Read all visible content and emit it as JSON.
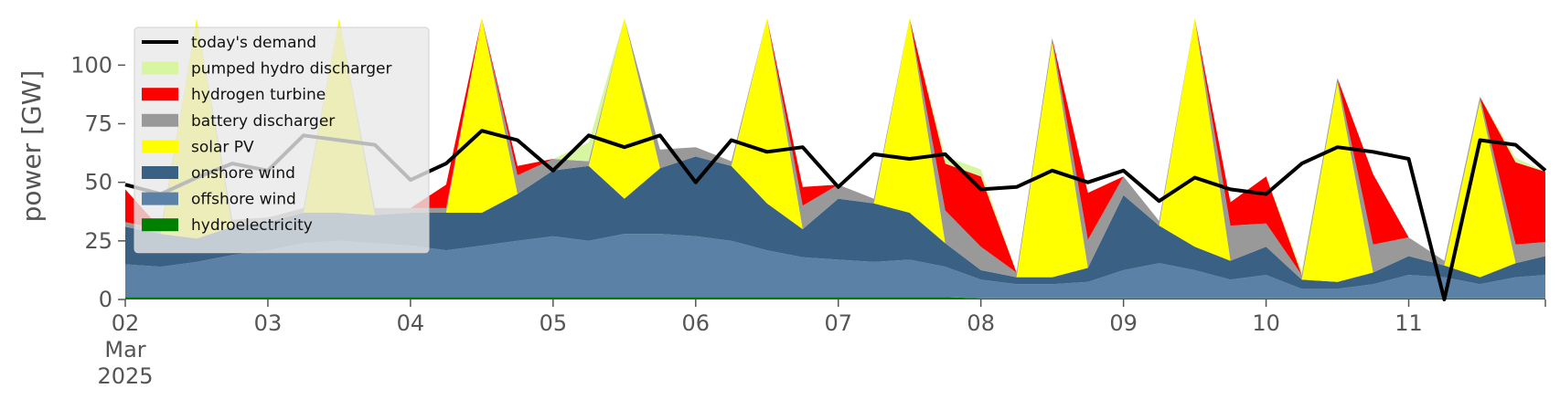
{
  "chart_data": {
    "type": "area",
    "ylabel": "power [GW]",
    "xlabel": "",
    "ylim": [
      0,
      120
    ],
    "xlim": [
      "2025-03-02 00:00",
      "2025-03-11 23:00"
    ],
    "grid": false,
    "legend_position": "top-left",
    "y_ticks": [
      "0",
      "25",
      "50",
      "75",
      "100"
    ],
    "x_ticks": [
      {
        "date": "2025-03-02",
        "label": "02",
        "sublabel": "Mar",
        "sublabel2": "2025"
      },
      {
        "date": "2025-03-03",
        "label": "03"
      },
      {
        "date": "2025-03-04",
        "label": "04"
      },
      {
        "date": "2025-03-05",
        "label": "05"
      },
      {
        "date": "2025-03-06",
        "label": "06"
      },
      {
        "date": "2025-03-07",
        "label": "07"
      },
      {
        "date": "2025-03-08",
        "label": "08"
      },
      {
        "date": "2025-03-09",
        "label": "09"
      },
      {
        "date": "2025-03-10",
        "label": "10"
      },
      {
        "date": "2025-03-11",
        "label": "11"
      }
    ],
    "x": [
      "2025-03-02 00:00",
      "2025-03-02 06:00",
      "2025-03-02 12:00",
      "2025-03-02 18:00",
      "2025-03-03 00:00",
      "2025-03-03 06:00",
      "2025-03-03 12:00",
      "2025-03-03 18:00",
      "2025-03-04 00:00",
      "2025-03-04 06:00",
      "2025-03-04 12:00",
      "2025-03-04 18:00",
      "2025-03-05 00:00",
      "2025-03-05 06:00",
      "2025-03-05 12:00",
      "2025-03-05 18:00",
      "2025-03-06 00:00",
      "2025-03-06 06:00",
      "2025-03-06 12:00",
      "2025-03-06 18:00",
      "2025-03-07 00:00",
      "2025-03-07 06:00",
      "2025-03-07 12:00",
      "2025-03-07 18:00",
      "2025-03-08 00:00",
      "2025-03-08 06:00",
      "2025-03-08 12:00",
      "2025-03-08 18:00",
      "2025-03-09 00:00",
      "2025-03-09 06:00",
      "2025-03-09 12:00",
      "2025-03-09 18:00",
      "2025-03-10 00:00",
      "2025-03-10 06:00",
      "2025-03-10 12:00",
      "2025-03-10 18:00",
      "2025-03-11 00:00",
      "2025-03-11 06:00",
      "2025-03-11 12:00",
      "2025-03-11 18:00",
      "2025-03-11 23:00"
    ],
    "series": [
      {
        "name": "hydroelectricity",
        "color": "#008000",
        "kind": "area",
        "values": [
          1,
          1,
          1,
          1,
          1,
          1,
          1,
          1,
          1,
          1,
          1,
          1,
          1,
          1,
          1,
          1,
          1,
          1,
          1,
          1,
          1,
          1,
          1,
          1,
          0.5,
          0.5,
          0.5,
          0.5,
          0.5,
          0.5,
          0.5,
          0.5,
          0.5,
          0.5,
          0.5,
          0.5,
          0.5,
          0.5,
          0.5,
          0.5,
          0.5
        ]
      },
      {
        "name": "offshore wind",
        "color": "#5b82a6",
        "kind": "area",
        "values": [
          14,
          13,
          15,
          18,
          20,
          23,
          24,
          23,
          22,
          20,
          22,
          24,
          26,
          24,
          27,
          27,
          26,
          24,
          20,
          17,
          16,
          15,
          16,
          13,
          8,
          6,
          6,
          7,
          12,
          15,
          12,
          8,
          10,
          4,
          4,
          6,
          10,
          9,
          6,
          9,
          10
        ]
      },
      {
        "name": "onshore wind",
        "color": "#3a6083",
        "kind": "area",
        "values": [
          16,
          14,
          10,
          12,
          12,
          13,
          12,
          12,
          14,
          16,
          14,
          20,
          28,
          32,
          15,
          28,
          34,
          32,
          20,
          12,
          26,
          25,
          20,
          10,
          4,
          3,
          3,
          6,
          32,
          16,
          10,
          8,
          12,
          4,
          3,
          5,
          8,
          5,
          3,
          6,
          8
        ]
      },
      {
        "name": "solar PV",
        "color": "#ffff00",
        "kind": "area",
        "values": [
          0,
          0,
          100,
          0,
          0,
          0,
          100,
          0,
          0,
          0,
          100,
          0,
          0,
          0,
          100,
          0,
          0,
          0,
          100,
          0,
          0,
          0,
          100,
          0,
          0,
          0,
          100,
          0,
          0,
          0,
          100,
          0,
          0,
          0,
          85,
          0,
          0,
          0,
          75,
          0,
          0
        ]
      },
      {
        "name": "battery discharger",
        "color": "#999999",
        "kind": "area",
        "values": [
          2,
          2,
          2,
          3,
          2,
          2,
          2,
          3,
          2,
          2,
          2,
          8,
          5,
          2,
          2,
          8,
          4,
          2,
          2,
          10,
          6,
          2,
          2,
          14,
          10,
          2,
          2,
          12,
          8,
          2,
          2,
          15,
          10,
          2,
          2,
          12,
          8,
          2,
          2,
          8,
          6
        ]
      },
      {
        "name": "hydrogen turbine",
        "color": "#ff0000",
        "kind": "area",
        "values": [
          14,
          0,
          0,
          0,
          0,
          0,
          0,
          0,
          0,
          10,
          0,
          4,
          0,
          0,
          0,
          0,
          0,
          0,
          0,
          8,
          0,
          0,
          0,
          20,
          30,
          0,
          0,
          20,
          0,
          0,
          0,
          10,
          20,
          0,
          0,
          30,
          0,
          0,
          0,
          35,
          30
        ]
      },
      {
        "name": "pumped hydro discharger",
        "color": "#d8f5a2",
        "kind": "area",
        "values": [
          0,
          0,
          0,
          0,
          0,
          0,
          0,
          0,
          0,
          0,
          0,
          0,
          0,
          8,
          0,
          0,
          0,
          0,
          0,
          0,
          0,
          0,
          0,
          3,
          3,
          0,
          0,
          0,
          0,
          0,
          0,
          0,
          0,
          2,
          0,
          0,
          0,
          0,
          0,
          2,
          0
        ]
      },
      {
        "name": "today's demand",
        "color": "#000000",
        "kind": "line",
        "values": [
          49,
          45,
          52,
          58,
          55,
          70,
          68,
          66,
          51,
          58,
          72,
          68,
          55,
          70,
          65,
          70,
          50,
          68,
          63,
          65,
          48,
          62,
          60,
          62,
          47,
          48,
          55,
          50,
          55,
          42,
          52,
          47,
          45,
          58,
          65,
          63,
          60,
          0,
          68,
          66,
          55
        ]
      }
    ]
  }
}
